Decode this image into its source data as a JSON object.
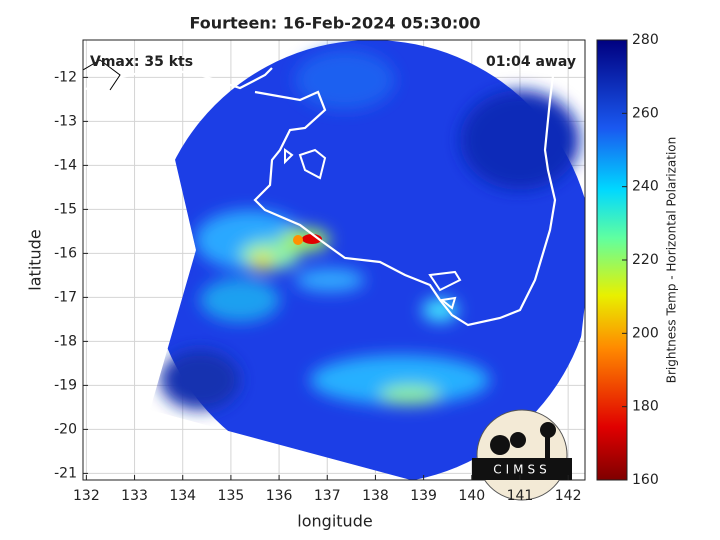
{
  "chart_data": {
    "type": "map",
    "title": "Fourteen: 16-Feb-2024 05:30:00",
    "xlabel": "longitude",
    "ylabel": "latitude",
    "xlim": [
      131.93,
      142.35
    ],
    "ylim": [
      -21.15,
      -11.15
    ],
    "xticks": [
      132,
      133,
      134,
      135,
      136,
      137,
      138,
      139,
      140,
      141,
      142
    ],
    "yticks": [
      -21,
      -20,
      -19,
      -18,
      -17,
      -16,
      -15,
      -14,
      -13,
      -12
    ],
    "grid": true,
    "annotations": {
      "left": "Vmax: 35 kts",
      "right": "01:04 away"
    },
    "colorbar": {
      "label": "Brightness Temp - Horizontal Polarization",
      "lim": [
        160,
        280
      ],
      "ticks": [
        160,
        180,
        200,
        220,
        240,
        260,
        280
      ]
    },
    "logo": "CIMSS"
  }
}
